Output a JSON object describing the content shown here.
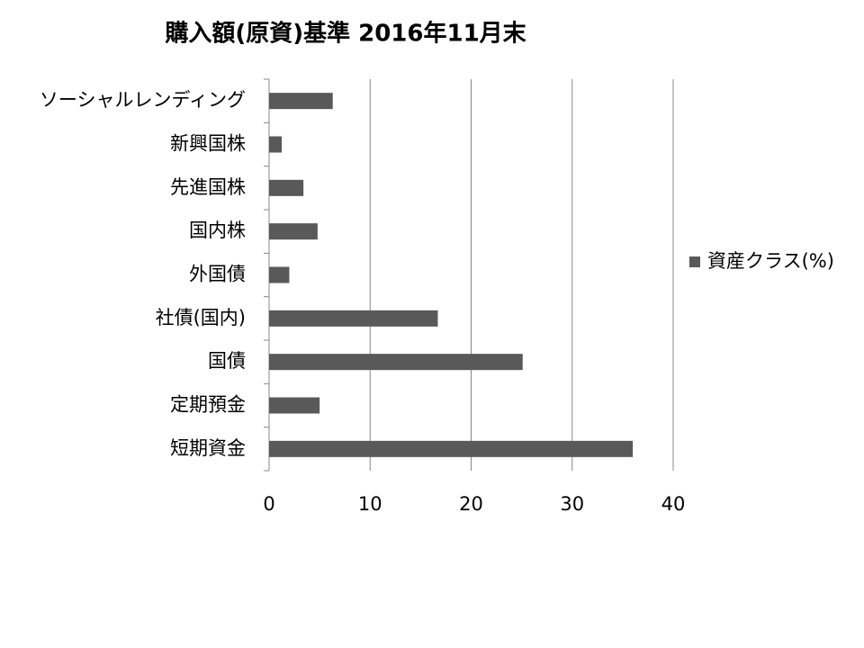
{
  "chart_data": {
    "type": "bar",
    "orientation": "horizontal",
    "title": "購入額(原資)基準 2016年11月末",
    "categories": [
      "ソーシャルレンディング",
      "新興国株",
      "先進国株",
      "国内株",
      "外国債",
      "社債(国内)",
      "国債",
      "定期預金",
      "短期資金"
    ],
    "series": [
      {
        "name": "資産クラス(%)",
        "color": "#595959",
        "values": [
          6.3,
          1.25,
          3.4,
          4.8,
          2.0,
          16.7,
          25.1,
          5.0,
          36.0
        ]
      }
    ],
    "xlim": [
      0,
      40
    ],
    "xticks": [
      0,
      10,
      20,
      30,
      40
    ],
    "grid": true,
    "legend": "right"
  }
}
